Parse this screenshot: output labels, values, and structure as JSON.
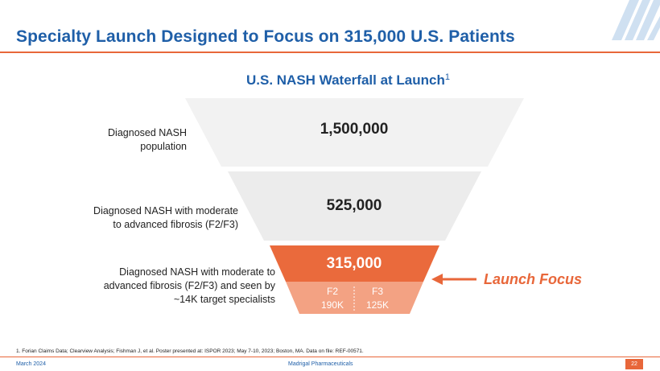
{
  "header": {
    "title": "Specialty Launch Designed to Focus on 315,000 U.S. Patients"
  },
  "chart": {
    "title": "U.S. NASH Waterfall at Launch",
    "title_sup": "1"
  },
  "chart_data": {
    "type": "funnel",
    "title": "U.S. NASH Waterfall at Launch",
    "stages": [
      {
        "label": "Diagnosed NASH population",
        "value": 1500000,
        "display": "1,500,000"
      },
      {
        "label": "Diagnosed NASH with moderate to advanced fibrosis (F2/F3)",
        "value": 525000,
        "display": "525,000"
      },
      {
        "label": "Diagnosed NASH with moderate to advanced fibrosis (F2/F3) and seen by ~14K target specialists",
        "value": 315000,
        "display": "315,000",
        "breakdown": [
          {
            "name": "F2",
            "display": "190K",
            "value": 190000
          },
          {
            "name": "F3",
            "display": "125K",
            "value": 125000
          }
        ]
      }
    ],
    "annotation": "Launch Focus"
  },
  "labels": {
    "stage1_line1": "Diagnosed NASH",
    "stage1_line2": "population",
    "stage2_line1": "Diagnosed NASH with moderate",
    "stage2_line2": "to advanced fibrosis (F2/F3)",
    "stage3_line1": "Diagnosed NASH with moderate to",
    "stage3_line2": "advanced fibrosis (F2/F3) and seen by",
    "stage3_line3": "~14K target specialists"
  },
  "values": {
    "stage1": "1,500,000",
    "stage2": "525,000",
    "stage3": "315,000",
    "f2_label": "F2",
    "f2_value": "190K",
    "f3_label": "F3",
    "f3_value": "125K"
  },
  "callout": {
    "text": "Launch Focus"
  },
  "footnote": "1. Forian Claims Data; Clearview Analysis; Fishman J, et al. Poster presented at: ISPOR 2023; May 7-10, 2023; Boston, MA. Data on file: REF-00571.",
  "footer": {
    "date": "March 2024",
    "company": "Madrigal Pharmaceuticals",
    "page": "22"
  },
  "colors": {
    "blue": "#1f5fa8",
    "orange": "#e8673a",
    "light_orange": "#f4a37f",
    "gray1": "#f2f2f2",
    "gray2": "#ececec"
  }
}
